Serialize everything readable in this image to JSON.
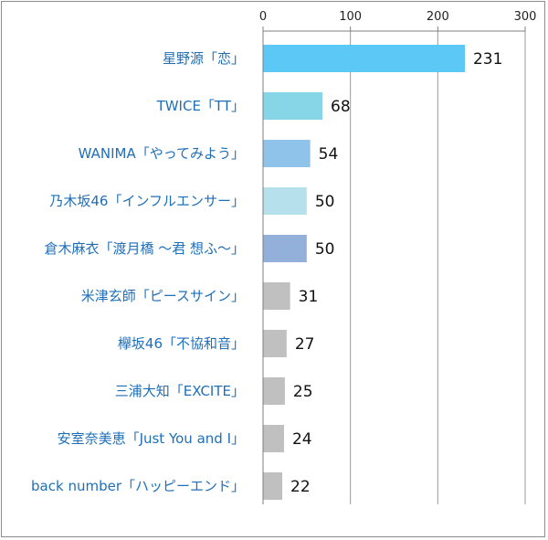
{
  "chart_data": {
    "type": "bar",
    "orientation": "horizontal",
    "title": "",
    "xlabel": "",
    "ylabel": "",
    "xlim": [
      0,
      300
    ],
    "x_ticks": [
      "0",
      "100",
      "200",
      "300"
    ],
    "grid": true,
    "legend": "none",
    "categories": [
      "星野源「恋」",
      "TWICE「TT」",
      "WANIMA「やってみよう」",
      "乃木坂46「インフルエンサー」",
      "倉木麻衣「渡月橋 ～君 想ふ～」",
      "米津玄師「ピースサイン」",
      "欅坂46「不協和音」",
      "三浦大知「EXCITE」",
      "安室奈美恵「Just You and I」",
      "back number「ハッピーエンド」"
    ],
    "values": [
      231,
      68,
      54,
      50,
      50,
      31,
      27,
      25,
      24,
      22
    ],
    "value_labels": [
      "231",
      "68",
      "54",
      "50",
      "50",
      "31",
      "27",
      "25",
      "24",
      "22"
    ],
    "colors": [
      "#5bc8f5",
      "#86d6e8",
      "#8fc3ea",
      "#b6e0ec",
      "#92b0da",
      "#c0c0c0",
      "#c0c0c0",
      "#c0c0c0",
      "#c0c0c0",
      "#c0c0c0"
    ],
    "label_color": "#1f6fb8"
  }
}
